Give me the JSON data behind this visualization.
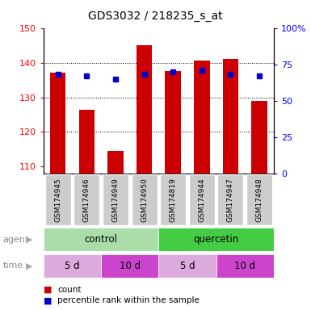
{
  "title": "GDS3032 / 218235_s_at",
  "samples": [
    "GSM174945",
    "GSM174946",
    "GSM174949",
    "GSM174950",
    "GSM174819",
    "GSM174944",
    "GSM174947",
    "GSM174948"
  ],
  "counts": [
    137.0,
    126.5,
    114.5,
    145.0,
    137.5,
    140.5,
    141.0,
    129.0
  ],
  "percentiles": [
    68,
    67,
    65,
    68,
    70,
    71,
    68,
    67
  ],
  "ylim_left": [
    108,
    150
  ],
  "ylim_right": [
    0,
    100
  ],
  "y_left_ticks": [
    110,
    120,
    130,
    140,
    150
  ],
  "y_right_ticks": [
    0,
    25,
    50,
    75,
    100
  ],
  "y_right_tick_labels": [
    "0",
    "25",
    "50",
    "75",
    "100%"
  ],
  "bar_color": "#cc0000",
  "dot_color": "#0000cc",
  "agent_control_color": "#aaddaa",
  "agent_quercetin_color": "#44cc44",
  "time_light_color": "#ddaadd",
  "time_dark_color": "#cc44cc",
  "sample_bg_color": "#cccccc",
  "agent_label": "agent",
  "time_label": "time",
  "control_label": "control",
  "quercetin_label": "quercetin",
  "time_labels": [
    "5 d",
    "10 d",
    "5 d",
    "10 d"
  ],
  "legend_count_label": "count",
  "legend_percentile_label": "percentile rank within the sample",
  "bar_width": 0.55,
  "ybase": 108
}
